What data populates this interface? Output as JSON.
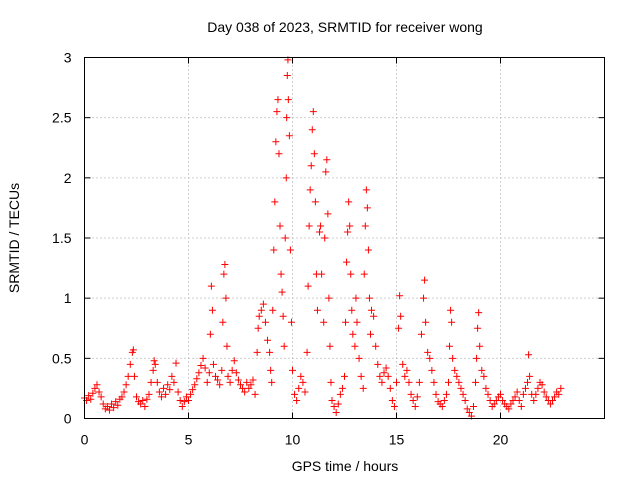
{
  "chart_data": {
    "type": "scatter",
    "title": "Day 038 of 2023, SRMTID for receiver wong",
    "xlabel": "GPS time / hours",
    "ylabel": "SRMTID / TECUs",
    "xlim": [
      0,
      25
    ],
    "ylim": [
      0,
      3
    ],
    "xticks": [
      0,
      5,
      10,
      15,
      20
    ],
    "yticks": [
      0,
      0.5,
      1,
      1.5,
      2,
      2.5,
      3
    ],
    "xtick_labels": [
      "0",
      "5",
      "10",
      "15",
      "20"
    ],
    "ytick_labels": [
      "0",
      "0.5",
      "1",
      "1.5",
      "2",
      "2.5",
      "3"
    ],
    "grid": true,
    "marker": "+",
    "color": "#ff0000",
    "series": [
      {
        "name": "SRMTID",
        "points": [
          [
            0.0,
            0.17
          ],
          [
            0.1,
            0.15
          ],
          [
            0.2,
            0.19
          ],
          [
            0.3,
            0.16
          ],
          [
            0.4,
            0.21
          ],
          [
            0.5,
            0.25
          ],
          [
            0.6,
            0.28
          ],
          [
            0.7,
            0.22
          ],
          [
            0.8,
            0.18
          ],
          [
            0.9,
            0.12
          ],
          [
            1.0,
            0.08
          ],
          [
            1.1,
            0.1
          ],
          [
            1.2,
            0.07
          ],
          [
            1.3,
            0.12
          ],
          [
            1.4,
            0.09
          ],
          [
            1.5,
            0.14
          ],
          [
            1.6,
            0.11
          ],
          [
            1.7,
            0.16
          ],
          [
            1.8,
            0.18
          ],
          [
            1.9,
            0.22
          ],
          [
            2.0,
            0.28
          ],
          [
            2.1,
            0.35
          ],
          [
            2.2,
            0.45
          ],
          [
            2.3,
            0.55
          ],
          [
            2.35,
            0.57
          ],
          [
            2.4,
            0.35
          ],
          [
            2.5,
            0.18
          ],
          [
            2.6,
            0.14
          ],
          [
            2.7,
            0.12
          ],
          [
            2.8,
            0.15
          ],
          [
            2.9,
            0.1
          ],
          [
            3.0,
            0.16
          ],
          [
            3.1,
            0.2
          ],
          [
            3.2,
            0.3
          ],
          [
            3.3,
            0.4
          ],
          [
            3.35,
            0.48
          ],
          [
            3.4,
            0.45
          ],
          [
            3.5,
            0.3
          ],
          [
            3.6,
            0.22
          ],
          [
            3.7,
            0.18
          ],
          [
            3.8,
            0.25
          ],
          [
            3.9,
            0.2
          ],
          [
            4.0,
            0.28
          ],
          [
            4.1,
            0.24
          ],
          [
            4.2,
            0.35
          ],
          [
            4.3,
            0.3
          ],
          [
            4.4,
            0.46
          ],
          [
            4.5,
            0.22
          ],
          [
            4.6,
            0.15
          ],
          [
            4.7,
            0.1
          ],
          [
            4.8,
            0.14
          ],
          [
            4.9,
            0.18
          ],
          [
            5.0,
            0.15
          ],
          [
            5.1,
            0.2
          ],
          [
            5.2,
            0.24
          ],
          [
            5.3,
            0.28
          ],
          [
            5.4,
            0.33
          ],
          [
            5.5,
            0.38
          ],
          [
            5.6,
            0.44
          ],
          [
            5.7,
            0.5
          ],
          [
            5.8,
            0.42
          ],
          [
            5.9,
            0.3
          ],
          [
            6.0,
            0.38
          ],
          [
            6.05,
            0.7
          ],
          [
            6.1,
            1.1
          ],
          [
            6.15,
            0.9
          ],
          [
            6.2,
            0.45
          ],
          [
            6.3,
            0.35
          ],
          [
            6.4,
            0.32
          ],
          [
            6.5,
            0.28
          ],
          [
            6.6,
            0.4
          ],
          [
            6.65,
            0.8
          ],
          [
            6.7,
            1.2
          ],
          [
            6.75,
            1.28
          ],
          [
            6.8,
            1.0
          ],
          [
            6.85,
            0.6
          ],
          [
            6.9,
            0.35
          ],
          [
            7.0,
            0.3
          ],
          [
            7.1,
            0.4
          ],
          [
            7.2,
            0.48
          ],
          [
            7.3,
            0.38
          ],
          [
            7.4,
            0.32
          ],
          [
            7.5,
            0.28
          ],
          [
            7.6,
            0.25
          ],
          [
            7.7,
            0.22
          ],
          [
            7.8,
            0.3
          ],
          [
            7.9,
            0.25
          ],
          [
            8.0,
            0.28
          ],
          [
            8.1,
            0.32
          ],
          [
            8.2,
            0.2
          ],
          [
            8.3,
            0.55
          ],
          [
            8.35,
            0.75
          ],
          [
            8.4,
            0.85
          ],
          [
            8.5,
            0.9
          ],
          [
            8.6,
            0.95
          ],
          [
            8.7,
            0.8
          ],
          [
            8.8,
            0.65
          ],
          [
            8.9,
            0.55
          ],
          [
            8.95,
            0.4
          ],
          [
            9.0,
            0.3
          ],
          [
            9.05,
            0.9
          ],
          [
            9.1,
            1.4
          ],
          [
            9.15,
            1.8
          ],
          [
            9.2,
            2.3
          ],
          [
            9.25,
            2.55
          ],
          [
            9.3,
            2.65
          ],
          [
            9.35,
            2.2
          ],
          [
            9.4,
            1.6
          ],
          [
            9.45,
            1.2
          ],
          [
            9.5,
            1.05
          ],
          [
            9.55,
            0.85
          ],
          [
            9.6,
            0.6
          ],
          [
            9.65,
            1.5
          ],
          [
            9.7,
            2.0
          ],
          [
            9.72,
            2.5
          ],
          [
            9.75,
            2.85
          ],
          [
            9.78,
            2.98
          ],
          [
            9.8,
            2.65
          ],
          [
            9.85,
            2.35
          ],
          [
            9.9,
            1.4
          ],
          [
            9.95,
            0.8
          ],
          [
            10.0,
            0.4
          ],
          [
            10.1,
            0.2
          ],
          [
            10.2,
            0.15
          ],
          [
            10.3,
            0.25
          ],
          [
            10.4,
            0.35
          ],
          [
            10.5,
            0.3
          ],
          [
            10.6,
            0.22
          ],
          [
            10.7,
            0.55
          ],
          [
            10.75,
            1.1
          ],
          [
            10.8,
            1.6
          ],
          [
            10.85,
            1.9
          ],
          [
            10.9,
            2.1
          ],
          [
            10.95,
            2.4
          ],
          [
            11.0,
            2.55
          ],
          [
            11.05,
            2.2
          ],
          [
            11.1,
            1.8
          ],
          [
            11.15,
            1.2
          ],
          [
            11.2,
            0.9
          ],
          [
            11.3,
            1.55
          ],
          [
            11.35,
            1.6
          ],
          [
            11.4,
            1.2
          ],
          [
            11.5,
            0.8
          ],
          [
            11.55,
            1.5
          ],
          [
            11.6,
            2.05
          ],
          [
            11.65,
            2.15
          ],
          [
            11.7,
            1.7
          ],
          [
            11.75,
            1.0
          ],
          [
            11.8,
            0.6
          ],
          [
            11.85,
            0.3
          ],
          [
            11.9,
            0.15
          ],
          [
            12.0,
            0.1
          ],
          [
            12.1,
            0.05
          ],
          [
            12.2,
            0.12
          ],
          [
            12.3,
            0.2
          ],
          [
            12.4,
            0.25
          ],
          [
            12.5,
            0.35
          ],
          [
            12.55,
            0.8
          ],
          [
            12.6,
            1.3
          ],
          [
            12.65,
            1.55
          ],
          [
            12.7,
            1.8
          ],
          [
            12.75,
            1.6
          ],
          [
            12.8,
            1.2
          ],
          [
            12.85,
            0.9
          ],
          [
            12.9,
            0.7
          ],
          [
            13.0,
            0.6
          ],
          [
            13.05,
            1.0
          ],
          [
            13.1,
            0.8
          ],
          [
            13.2,
            0.5
          ],
          [
            13.3,
            0.35
          ],
          [
            13.4,
            0.25
          ],
          [
            13.45,
            1.2
          ],
          [
            13.5,
            1.6
          ],
          [
            13.55,
            1.9
          ],
          [
            13.6,
            1.75
          ],
          [
            13.65,
            1.4
          ],
          [
            13.7,
            1.0
          ],
          [
            13.75,
            0.7
          ],
          [
            13.8,
            0.9
          ],
          [
            13.9,
            0.85
          ],
          [
            14.0,
            0.6
          ],
          [
            14.1,
            0.45
          ],
          [
            14.2,
            0.35
          ],
          [
            14.3,
            0.3
          ],
          [
            14.4,
            0.38
          ],
          [
            14.5,
            0.42
          ],
          [
            14.6,
            0.35
          ],
          [
            14.7,
            0.25
          ],
          [
            14.8,
            0.15
          ],
          [
            14.9,
            0.1
          ],
          [
            15.0,
            0.3
          ],
          [
            15.1,
            0.75
          ],
          [
            15.15,
            1.02
          ],
          [
            15.2,
            0.85
          ],
          [
            15.3,
            0.45
          ],
          [
            15.4,
            0.35
          ],
          [
            15.5,
            0.4
          ],
          [
            15.6,
            0.3
          ],
          [
            15.7,
            0.2
          ],
          [
            15.8,
            0.15
          ],
          [
            15.9,
            0.1
          ],
          [
            16.0,
            0.18
          ],
          [
            16.1,
            0.3
          ],
          [
            16.2,
            0.7
          ],
          [
            16.3,
            1.0
          ],
          [
            16.35,
            1.15
          ],
          [
            16.4,
            0.8
          ],
          [
            16.5,
            0.55
          ],
          [
            16.6,
            0.5
          ],
          [
            16.7,
            0.4
          ],
          [
            16.8,
            0.3
          ],
          [
            16.9,
            0.2
          ],
          [
            17.0,
            0.14
          ],
          [
            17.1,
            0.12
          ],
          [
            17.2,
            0.1
          ],
          [
            17.3,
            0.15
          ],
          [
            17.4,
            0.2
          ],
          [
            17.5,
            0.3
          ],
          [
            17.55,
            0.6
          ],
          [
            17.6,
            0.9
          ],
          [
            17.65,
            0.8
          ],
          [
            17.7,
            0.5
          ],
          [
            17.8,
            0.4
          ],
          [
            17.9,
            0.35
          ],
          [
            18.0,
            0.3
          ],
          [
            18.1,
            0.25
          ],
          [
            18.2,
            0.2
          ],
          [
            18.3,
            0.15
          ],
          [
            18.4,
            0.08
          ],
          [
            18.5,
            0.05
          ],
          [
            18.6,
            0.02
          ],
          [
            18.7,
            0.1
          ],
          [
            18.8,
            0.3
          ],
          [
            18.85,
            0.5
          ],
          [
            18.9,
            0.75
          ],
          [
            18.95,
            0.88
          ],
          [
            19.0,
            0.6
          ],
          [
            19.1,
            0.4
          ],
          [
            19.2,
            0.35
          ],
          [
            19.3,
            0.25
          ],
          [
            19.4,
            0.2
          ],
          [
            19.5,
            0.15
          ],
          [
            19.6,
            0.1
          ],
          [
            19.7,
            0.12
          ],
          [
            19.8,
            0.15
          ],
          [
            19.9,
            0.18
          ],
          [
            20.0,
            0.2
          ],
          [
            20.1,
            0.15
          ],
          [
            20.2,
            0.12
          ],
          [
            20.3,
            0.1
          ],
          [
            20.4,
            0.08
          ],
          [
            20.5,
            0.12
          ],
          [
            20.6,
            0.15
          ],
          [
            20.7,
            0.18
          ],
          [
            20.8,
            0.22
          ],
          [
            20.9,
            0.15
          ],
          [
            21.0,
            0.1
          ],
          [
            21.1,
            0.2
          ],
          [
            21.2,
            0.25
          ],
          [
            21.3,
            0.3
          ],
          [
            21.35,
            0.53
          ],
          [
            21.4,
            0.35
          ],
          [
            21.5,
            0.2
          ],
          [
            21.6,
            0.15
          ],
          [
            21.7,
            0.2
          ],
          [
            21.8,
            0.25
          ],
          [
            21.9,
            0.3
          ],
          [
            22.0,
            0.28
          ],
          [
            22.1,
            0.22
          ],
          [
            22.2,
            0.18
          ],
          [
            22.3,
            0.15
          ],
          [
            22.4,
            0.12
          ],
          [
            22.5,
            0.15
          ],
          [
            22.6,
            0.18
          ],
          [
            22.7,
            0.22
          ],
          [
            22.8,
            0.2
          ],
          [
            22.9,
            0.25
          ]
        ]
      }
    ]
  }
}
